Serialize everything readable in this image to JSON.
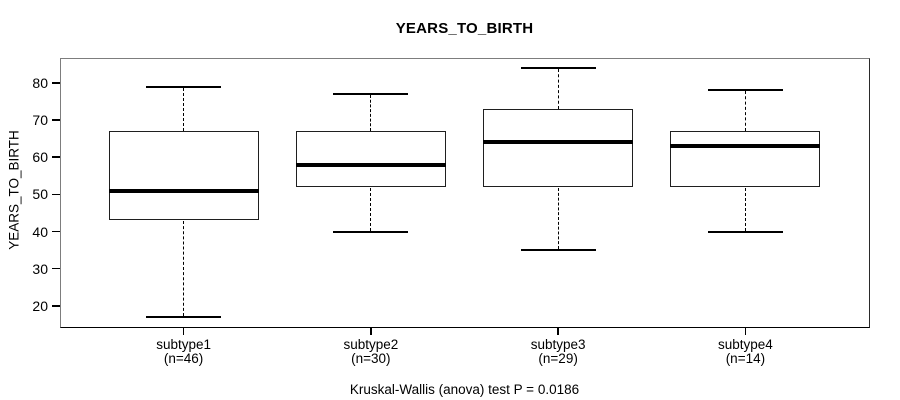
{
  "colors": {
    "line": "#000000",
    "frame_gray": "#7d7d7d",
    "background": "#ffffff"
  },
  "chart_data": {
    "type": "boxplot",
    "title": "YEARS_TO_BIRTH",
    "ylabel": "YEARS_TO_BIRTH",
    "xlabel": "",
    "caption": "Kruskal-Wallis (anova) test P = 0.0186",
    "grid": false,
    "yticks": [
      20,
      30,
      40,
      50,
      60,
      70,
      80
    ],
    "ylim": [
      14.3,
      86.7
    ],
    "xlim": [
      0.34,
      4.66
    ],
    "groups": [
      {
        "label": "subtype1",
        "sublabel": "(n=46)",
        "n": 46,
        "whisker_low": 17,
        "q1": 43,
        "median": 51,
        "q3": 67,
        "whisker_high": 79
      },
      {
        "label": "subtype2",
        "sublabel": "(n=30)",
        "n": 30,
        "whisker_low": 40,
        "q1": 52,
        "median": 58,
        "q3": 67,
        "whisker_high": 77
      },
      {
        "label": "subtype3",
        "sublabel": "(n=29)",
        "n": 29,
        "whisker_low": 35,
        "q1": 52,
        "median": 64,
        "q3": 73,
        "whisker_high": 84
      },
      {
        "label": "subtype4",
        "sublabel": "(n=14)",
        "n": 14,
        "whisker_low": 40,
        "q1": 52,
        "median": 63,
        "q3": 67,
        "whisker_high": 78
      }
    ]
  }
}
